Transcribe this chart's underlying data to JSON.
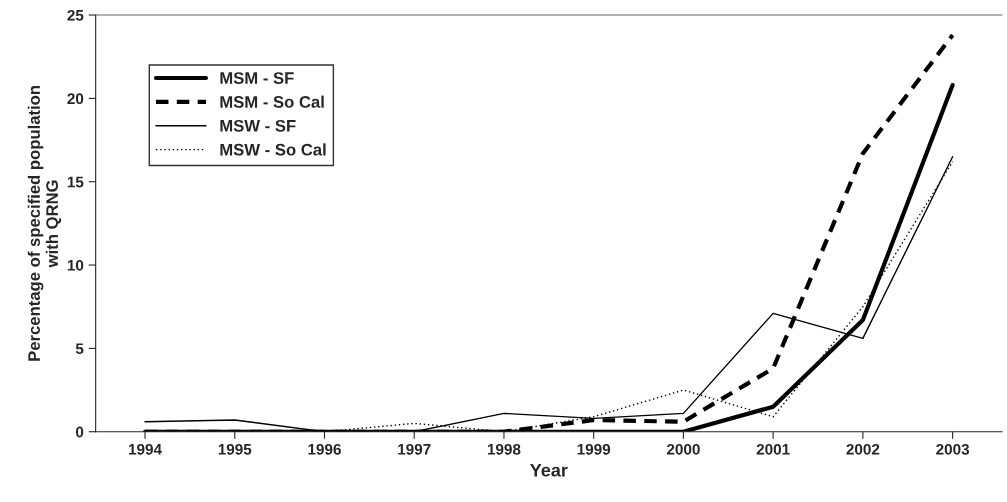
{
  "chart_data": {
    "type": "line",
    "xlabel": "Year",
    "ylabel": "Percentage of specified population\nwith QRNG",
    "categories": [
      "1994",
      "1995",
      "1996",
      "1997",
      "1998",
      "1999",
      "2000",
      "2001",
      "2002",
      "2003"
    ],
    "series": [
      {
        "name": "MSM - SF",
        "color": "#000000",
        "line_style": "solid",
        "values": [
          0,
          0,
          0,
          0,
          0,
          0,
          0,
          1.5,
          6.7,
          20.8
        ]
      },
      {
        "name": "MSM - So Cal",
        "color": "#000000",
        "line_style": "dashed",
        "values": [
          0,
          0,
          0,
          0,
          0,
          0.7,
          0.6,
          3.8,
          16.7,
          23.8
        ]
      },
      {
        "name": "MSW - SF",
        "color": "#000000",
        "line_style": "solid",
        "values": [
          0.6,
          0.7,
          0,
          0,
          1.1,
          0.8,
          1.1,
          7.1,
          5.6,
          16.5
        ]
      },
      {
        "name": "MSW - So Cal",
        "color": "#000000",
        "line_style": "dotted",
        "values": [
          0,
          0,
          0,
          0.5,
          0,
          0.9,
          2.5,
          0.9,
          7.5,
          16.2
        ]
      }
    ],
    "ylim": [
      0,
      25
    ],
    "yticks": [
      0,
      5,
      10,
      15,
      20,
      25
    ],
    "grid": false,
    "legend": "top left",
    "marker": "none"
  }
}
